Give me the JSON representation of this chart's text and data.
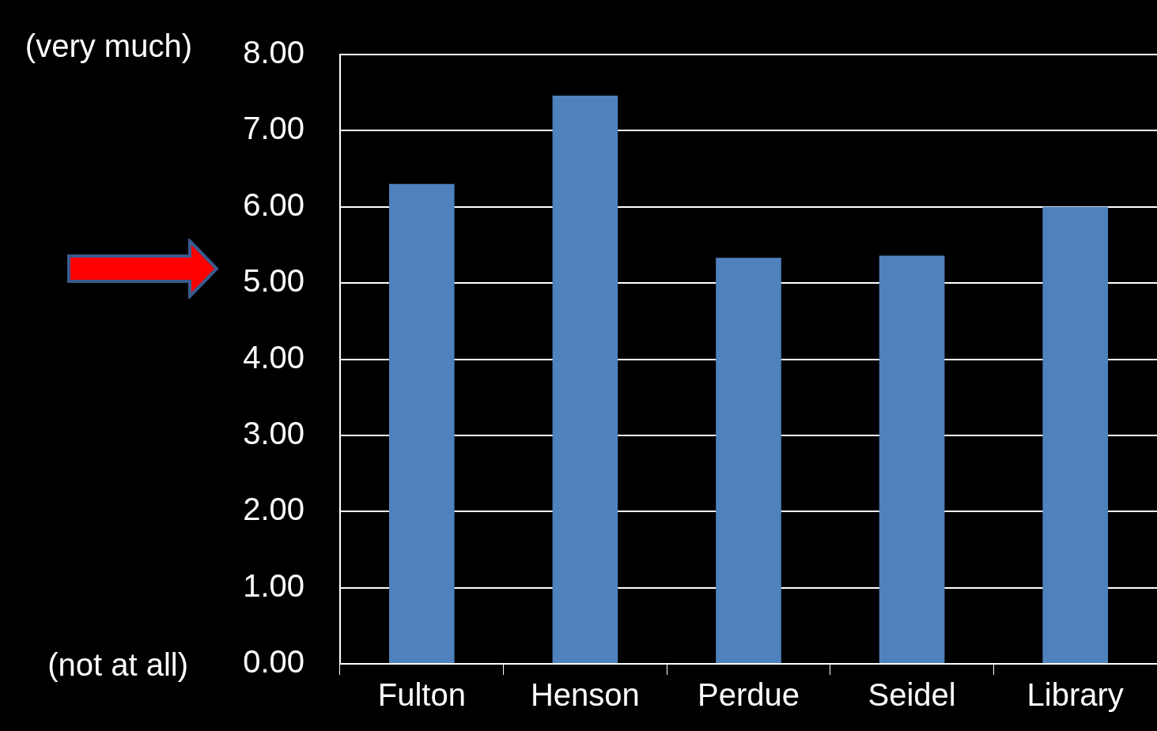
{
  "chart_data": {
    "type": "bar",
    "categories": [
      "Fulton",
      "Henson",
      "Perdue",
      "Seidel",
      "Library"
    ],
    "values": [
      6.3,
      7.46,
      5.33,
      5.36,
      6.0
    ],
    "color": "#4f81bd",
    "ylim": [
      0,
      8
    ],
    "yticks": [
      {
        "value": 0,
        "label": "0.00"
      },
      {
        "value": 1,
        "label": "1.00"
      },
      {
        "value": 2,
        "label": "2.00"
      },
      {
        "value": 3,
        "label": "3.00"
      },
      {
        "value": 4,
        "label": "4.00"
      },
      {
        "value": 5,
        "label": "5.00"
      },
      {
        "value": 6,
        "label": "6.00"
      },
      {
        "value": 7,
        "label": "7.00"
      },
      {
        "value": 8,
        "label": "8.00"
      }
    ],
    "grid": "y",
    "legend": false,
    "annotations": [
      "(very much)",
      "(not at all)"
    ]
  }
}
